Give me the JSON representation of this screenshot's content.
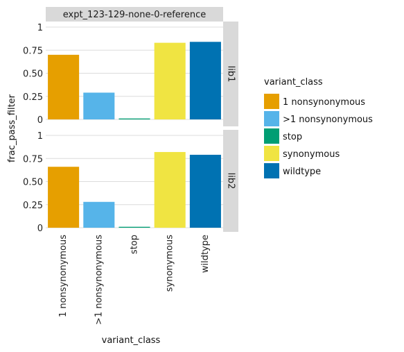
{
  "chart_data": {
    "type": "bar",
    "facet_title": "expt_123-129-none-0-reference",
    "xlabel": "variant_class",
    "ylabel": "frac_pass_filter",
    "ylim": [
      0,
      1
    ],
    "yticks": [
      0,
      0.25,
      0.5,
      0.75,
      1
    ],
    "ytick_labels": [
      "0",
      "0.25",
      "0.50",
      "0.75",
      "1"
    ],
    "categories": [
      "1 nonsynonymous",
      ">1 nonsynonymous",
      "stop",
      "synonymous",
      "wildtype"
    ],
    "colors": [
      "#E69F00",
      "#56B4E9",
      "#009E73",
      "#F0E442",
      "#0072B2"
    ],
    "panels": [
      {
        "label": "lib1",
        "values": [
          0.7,
          0.29,
          0.01,
          0.83,
          0.84
        ]
      },
      {
        "label": "lib2",
        "values": [
          0.66,
          0.28,
          0.01,
          0.82,
          0.79
        ]
      }
    ],
    "grid": true,
    "legend": {
      "title": "variant_class",
      "placement": "right",
      "entries": [
        "1 nonsynonymous",
        ">1 nonsynonymous",
        "stop",
        "synonymous",
        "wildtype"
      ]
    }
  }
}
